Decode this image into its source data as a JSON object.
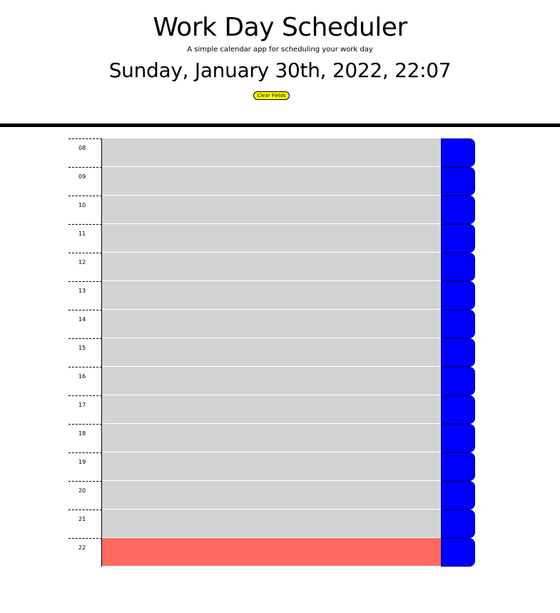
{
  "header": {
    "title": "Work Day Scheduler",
    "subtitle": "A simple calendar app for scheduling your work day",
    "current_day": "Sunday, January 30th, 2022, 22:07",
    "clear_label": "Clear Fields"
  },
  "colors": {
    "past": "#d3d3d3",
    "present": "#ff6961",
    "save_button": "#0000ff",
    "clear_button": "#ffff00"
  },
  "rows": [
    {
      "hour": "08",
      "text": "",
      "state": "past"
    },
    {
      "hour": "09",
      "text": "",
      "state": "past"
    },
    {
      "hour": "10",
      "text": "",
      "state": "past"
    },
    {
      "hour": "11",
      "text": "",
      "state": "past"
    },
    {
      "hour": "12",
      "text": "",
      "state": "past"
    },
    {
      "hour": "13",
      "text": "",
      "state": "past"
    },
    {
      "hour": "14",
      "text": "",
      "state": "past"
    },
    {
      "hour": "15",
      "text": "",
      "state": "past"
    },
    {
      "hour": "16",
      "text": "",
      "state": "past"
    },
    {
      "hour": "17",
      "text": "",
      "state": "past"
    },
    {
      "hour": "18",
      "text": "",
      "state": "past"
    },
    {
      "hour": "19",
      "text": "",
      "state": "past"
    },
    {
      "hour": "20",
      "text": "",
      "state": "past"
    },
    {
      "hour": "21",
      "text": "",
      "state": "past"
    },
    {
      "hour": "22",
      "text": "",
      "state": "present"
    }
  ]
}
